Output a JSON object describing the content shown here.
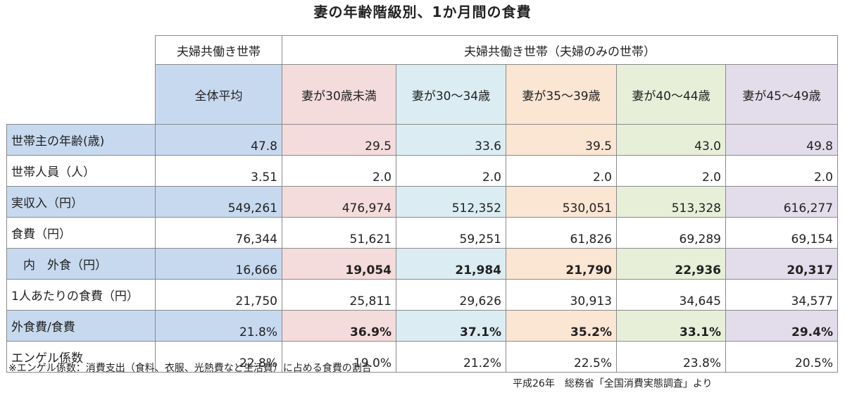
{
  "title": "妻の年齢階級別、1か月間の食費",
  "header": {
    "group_left": "夫婦共働き世帯",
    "group_right": "夫婦共働き世帯（夫婦のみの世帯）",
    "columns": [
      "全体平均",
      "妻が30歳未満",
      "妻が30～34歳",
      "妻が35～39歳",
      "妻が40～44歳",
      "妻が45～49歳"
    ]
  },
  "rows": [
    {
      "label": "世帯主の年齢(歳)",
      "values": [
        "47.8",
        "29.5",
        "33.6",
        "39.5",
        "43.0",
        "49.8"
      ]
    },
    {
      "label": "世帯人員（人）",
      "values": [
        "3.51",
        "2.0",
        "2.0",
        "2.0",
        "2.0",
        "2.0"
      ]
    },
    {
      "label": "実収入（円）",
      "values": [
        "549,261",
        "476,974",
        "512,352",
        "530,051",
        "513,328",
        "616,277"
      ]
    },
    {
      "label": "食費（円）",
      "values": [
        "76,344",
        "51,621",
        "59,251",
        "61,826",
        "69,289",
        "69,154"
      ]
    },
    {
      "label": "　内　外食（円）",
      "values": [
        "16,666",
        "19,054",
        "21,984",
        "21,790",
        "22,936",
        "20,317"
      ]
    },
    {
      "label": "1人あたりの食費（円）",
      "values": [
        "21,750",
        "25,811",
        "29,626",
        "30,913",
        "34,645",
        "34,577"
      ]
    },
    {
      "label": "外食費/食費",
      "values": [
        "21.8%",
        "36.9%",
        "37.1%",
        "35.2%",
        "33.1%",
        "29.4%"
      ]
    },
    {
      "label": "エンゲル係数",
      "values": [
        "22.8%",
        "19.0%",
        "21.2%",
        "22.5%",
        "23.8%",
        "20.5%"
      ]
    }
  ],
  "footnote": "※エンゲル係数：消費支出（食料、衣服、光熱費など生活費）に占める食費の割合",
  "source": "平成26年　総務省「全国消費実態調査」より",
  "colors": {
    "label_highlight": "#c7d9ef",
    "average": "#c7d9ef",
    "under30": "#f4dcdc",
    "age30_34": "#dbedf3",
    "age35_39": "#fbe5d3",
    "age40_44": "#e8efd9",
    "age45_49": "#e2dceb"
  }
}
